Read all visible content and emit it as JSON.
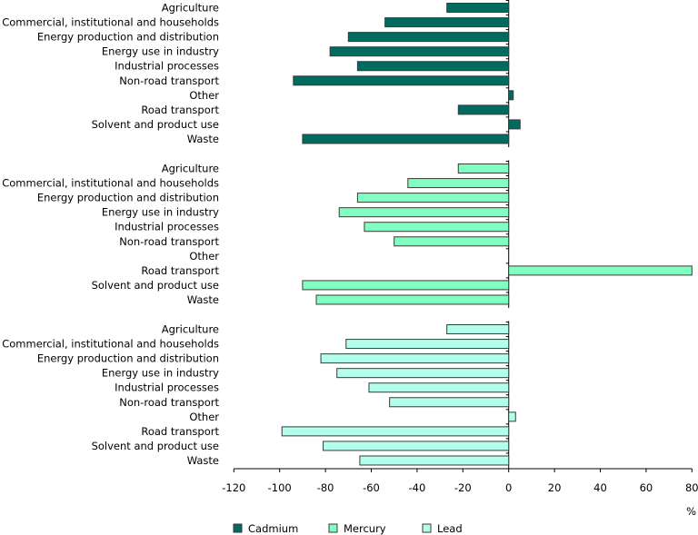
{
  "chart_data": {
    "type": "bar",
    "orientation": "horizontal",
    "title": "",
    "xlabel": "%",
    "ylabel": "",
    "xlim": [
      -120,
      80
    ],
    "xticks": [
      -120,
      -100,
      -80,
      -60,
      -40,
      -20,
      0,
      20,
      40,
      60,
      80
    ],
    "grid": false,
    "legend_position": "bottom",
    "categories": [
      "Agriculture",
      "Commercial, institutional and households",
      "Energy production and distribution",
      "Energy use in industry",
      "Industrial processes",
      "Non-road transport",
      "Other",
      "Road transport",
      "Solvent and product use",
      "Waste"
    ],
    "series": [
      {
        "name": "Cadmium",
        "color": "#006b5e",
        "values": [
          -27,
          -54,
          -70,
          -78,
          -66,
          -94,
          2,
          -22,
          5,
          -90
        ]
      },
      {
        "name": "Mercury",
        "color": "#80ffc0",
        "values": [
          -22,
          -44,
          -66,
          -74,
          -63,
          -50,
          null,
          80,
          -90,
          -84
        ]
      },
      {
        "name": "Lead",
        "color": "#b3ffec",
        "values": [
          -27,
          -71,
          -82,
          -75,
          -61,
          -52,
          3,
          -99,
          -81,
          -65
        ]
      }
    ]
  }
}
